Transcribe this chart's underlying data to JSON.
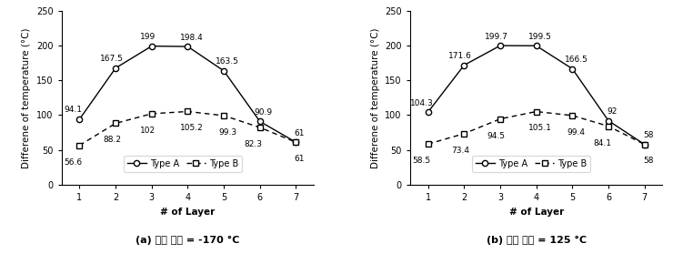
{
  "layers": [
    1,
    2,
    3,
    4,
    5,
    6,
    7
  ],
  "chart_a": {
    "typeA": [
      94.1,
      167.5,
      199,
      198.4,
      163.5,
      90.9,
      61
    ],
    "typeB": [
      56.6,
      88.2,
      102,
      105.2,
      99.3,
      82.3,
      61
    ],
    "subtitle": "(a) 외부 온도 = -170 °C"
  },
  "chart_b": {
    "typeA": [
      104.3,
      171.6,
      199.7,
      199.5,
      166.5,
      92,
      58
    ],
    "typeB": [
      58.5,
      73.4,
      94.5,
      105.1,
      99.4,
      84.1,
      58
    ],
    "subtitle": "(b) 외부 온도 = 125 °C"
  },
  "ylabel": "Differene of temperature (°C)",
  "xlabel": "# of Layer",
  "ylim": [
    0,
    250
  ],
  "yticks": [
    0,
    50,
    100,
    150,
    200,
    250
  ],
  "legend_typeA": "Type A",
  "legend_typeB": "Type B",
  "line_color": "#000000",
  "typeA_marker": "o",
  "typeB_marker": "s",
  "typeA_linestyle": "-",
  "typeB_linestyle": "--",
  "annotation_fontsize": 6.5,
  "label_fontsize": 7.5,
  "tick_fontsize": 7,
  "legend_fontsize": 7,
  "subtitle_fontsize": 8
}
